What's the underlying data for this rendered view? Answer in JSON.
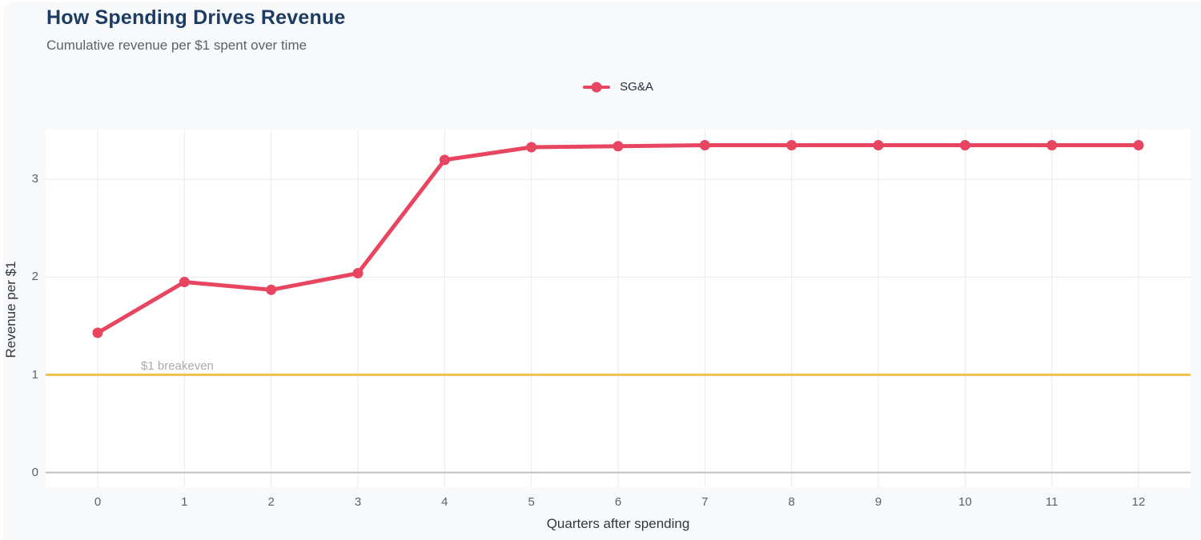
{
  "header": {
    "title": "How Spending Drives Revenue",
    "subtitle": "Cumulative revenue per $1 spent over time"
  },
  "legend": {
    "series_label": "SG&A"
  },
  "colors": {
    "title": "#1c3c64",
    "subtitle": "#5b6269",
    "series": "#e84560",
    "breakeven_line": "#f3c44d",
    "grid": "#e9eaec",
    "zero_line": "#bcc0c4",
    "plot_background": "#ffffff",
    "page_background": "#f8f9fa"
  },
  "chart_data": {
    "type": "line",
    "title": "How Spending Drives Revenue",
    "subtitle": "Cumulative revenue per $1 spent over time",
    "xlabel": "Quarters after spending",
    "ylabel": "Revenue per $1",
    "x": [
      0,
      1,
      2,
      3,
      4,
      5,
      6,
      7,
      8,
      9,
      10,
      11,
      12
    ],
    "series": [
      {
        "name": "SG&A",
        "color": "#e84560",
        "values": [
          1.43,
          1.95,
          1.87,
          2.04,
          3.2,
          3.33,
          3.34,
          3.35,
          3.35,
          3.35,
          3.35,
          3.35,
          3.35
        ]
      }
    ],
    "x_ticks": [
      0,
      1,
      2,
      3,
      4,
      5,
      6,
      7,
      8,
      9,
      10,
      11,
      12
    ],
    "y_ticks": [
      0,
      1,
      2,
      3
    ],
    "xlim": [
      -0.6,
      12.6
    ],
    "ylim": [
      -0.15,
      3.51
    ],
    "grid": true,
    "legend_position": "top-center",
    "reference_line": {
      "value": 1,
      "label": "$1 breakeven",
      "color": "#f3c44d"
    }
  }
}
